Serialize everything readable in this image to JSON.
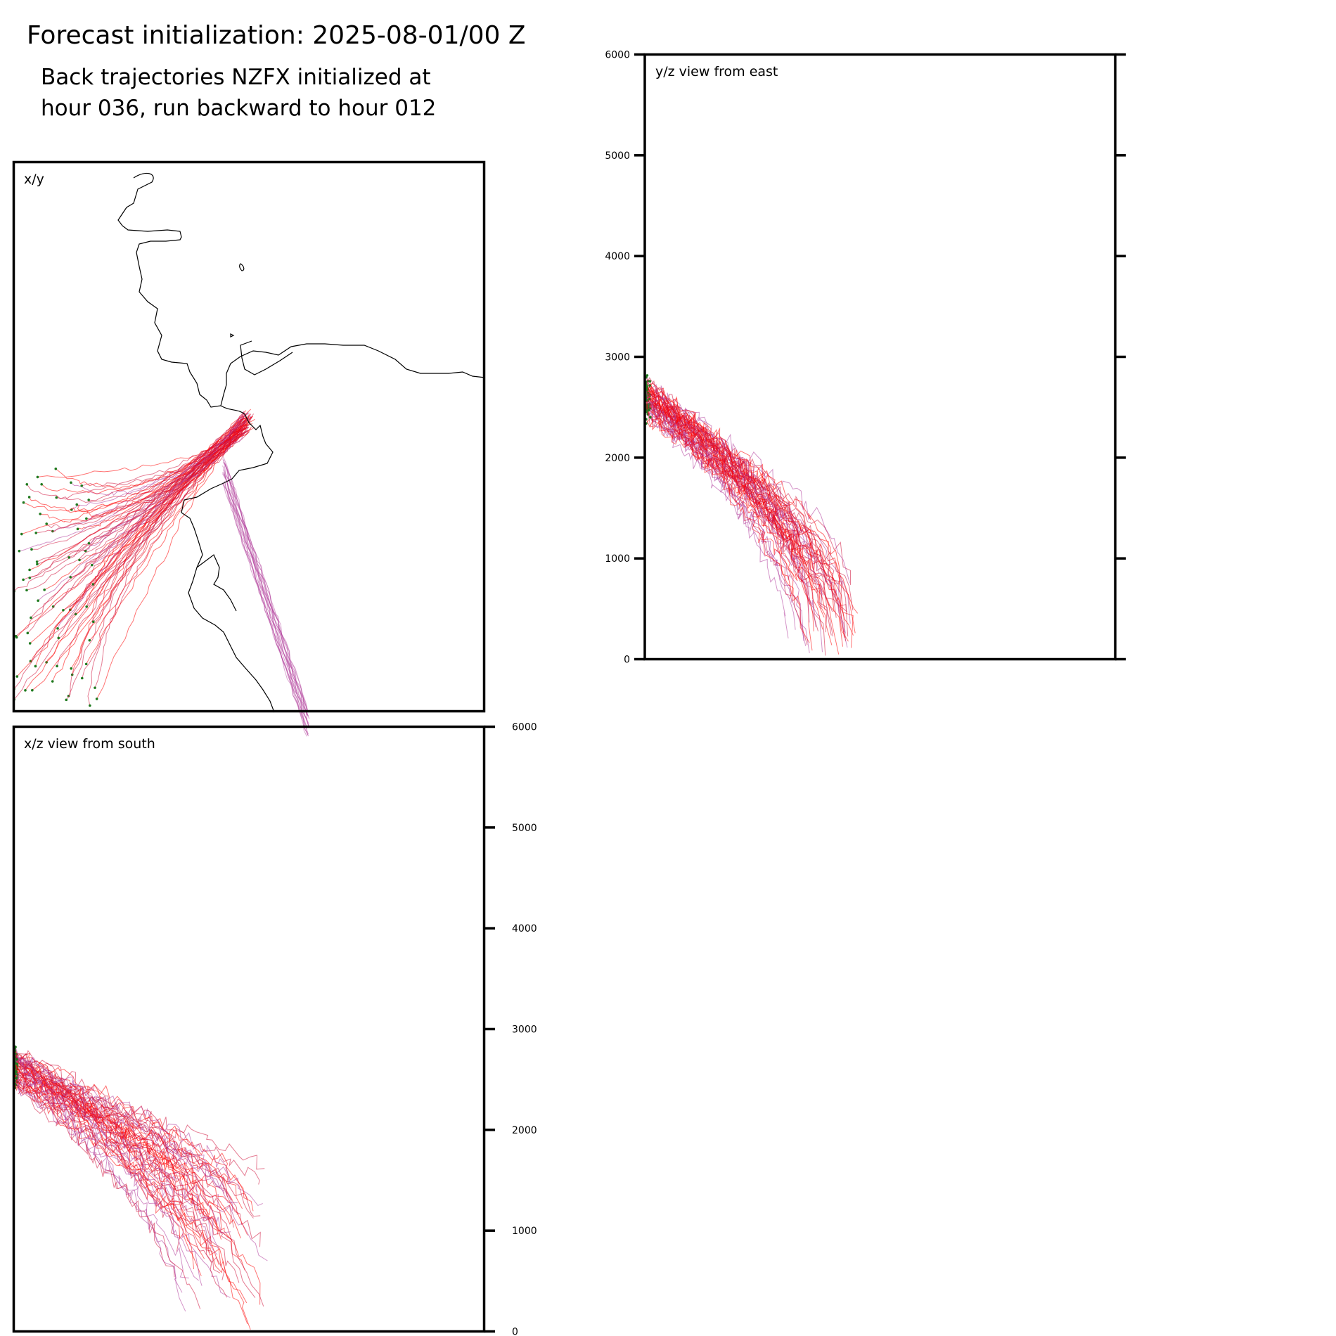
{
  "header": {
    "title": "Forecast initialization: 2025-08-01/00 Z",
    "subtitle_line1": "Back trajectories NZFX initialized at",
    "subtitle_line2": "hour 036, run backward to hour 012"
  },
  "colors": {
    "trajectory_red": "#ff0000",
    "trajectory_crimson": "#d0103a",
    "trajectory_magenta": "#b03a9a",
    "endpoint_marker": "#1f7a1f",
    "coastline": "#000000",
    "frame": "#000000"
  },
  "chart_data": [
    {
      "type": "line",
      "panel": "x/y",
      "label": "x/y",
      "description_note": "",
      "frame": true,
      "grid": false,
      "coastline": true,
      "start_marker_style": "small green dots at trajectory ends"
    },
    {
      "type": "line",
      "panel": "y/z",
      "label": "y/z view from east",
      "ylim": [
        0,
        6000
      ],
      "yticks": [
        0,
        1000,
        2000,
        3000,
        4000,
        5000,
        6000
      ],
      "ytick_labels": [
        "0",
        "1000",
        "2000",
        "3000",
        "4000",
        "5000",
        "6000"
      ],
      "ytick_side": "left",
      "grid": false
    },
    {
      "type": "line",
      "panel": "x/z",
      "label": "x/z view from south",
      "ylim": [
        0,
        6000
      ],
      "yticks": [
        0,
        1000,
        2000,
        3000,
        4000,
        5000,
        6000
      ],
      "ytick_labels": [
        "0",
        "1000",
        "2000",
        "3000",
        "4000",
        "5000",
        "6000"
      ],
      "ytick_side": "right",
      "grid": false
    }
  ]
}
